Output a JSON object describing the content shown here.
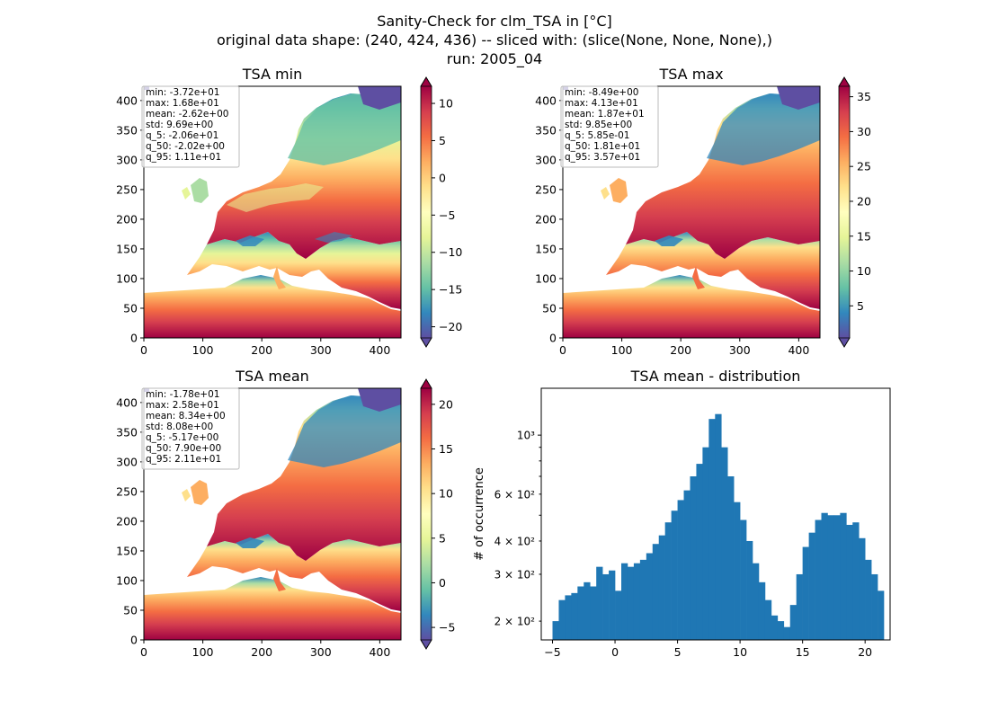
{
  "figure": {
    "title_lines": [
      "Sanity-Check for clm_TSA in [°C]",
      "original data shape: (240, 424, 436) -- sliced with: (slice(None, None, None),)",
      "run: 2005_04"
    ]
  },
  "colors": {
    "spectral_r": [
      "#5e4fa2",
      "#3288bd",
      "#66c2a5",
      "#abdda4",
      "#e6f598",
      "#ffffbf",
      "#fee08b",
      "#fdae61",
      "#f46d43",
      "#d53e4f",
      "#9e0142"
    ],
    "hist_bar": "#1f77b4",
    "axes": "#000000"
  },
  "maps": [
    {
      "title": "TSA min",
      "x_ticks": [
        "0",
        "100",
        "200",
        "300",
        "400"
      ],
      "y_ticks": [
        "0",
        "50",
        "100",
        "150",
        "200",
        "250",
        "300",
        "350",
        "400"
      ],
      "stats": [
        "min: -3.72e+01",
        "max: 1.68e+01",
        "mean: -2.62e+00",
        "std: 9.69e+00",
        "q_5: -2.06e+01",
        "q_50: -2.02e+00",
        "q_95: 1.11e+01"
      ],
      "colorbar": {
        "vmin": -21.5,
        "vmax": 12.3,
        "ticks": [
          10,
          5,
          0,
          -5,
          -10,
          -15,
          -20
        ],
        "tick_labels": [
          "10",
          "5",
          "0",
          "−5",
          "−10",
          "−15",
          "−20"
        ]
      }
    },
    {
      "title": "TSA max",
      "x_ticks": [
        "0",
        "100",
        "200",
        "300",
        "400"
      ],
      "y_ticks": [
        "0",
        "50",
        "100",
        "150",
        "200",
        "250",
        "300",
        "350",
        "400"
      ],
      "stats": [
        "min: -8.49e+00",
        "max: 4.13e+01",
        "mean: 1.87e+01",
        "std: 9.85e+00",
        "q_5: 5.85e-01",
        "q_50: 1.81e+01",
        "q_95: 3.57e+01"
      ],
      "colorbar": {
        "vmin": 0.4,
        "vmax": 36.5,
        "ticks": [
          35,
          30,
          25,
          20,
          15,
          10,
          5
        ],
        "tick_labels": [
          "35",
          "30",
          "25",
          "20",
          "15",
          "10",
          "5"
        ]
      }
    },
    {
      "title": "TSA mean",
      "x_ticks": [
        "0",
        "100",
        "200",
        "300",
        "400"
      ],
      "y_ticks": [
        "0",
        "50",
        "100",
        "150",
        "200",
        "250",
        "300",
        "350",
        "400"
      ],
      "stats": [
        "min: -1.78e+01",
        "max: 2.58e+01",
        "mean: 8.34e+00",
        "std: 8.08e+00",
        "q_5: -5.17e+00",
        "q_50: 7.90e+00",
        "q_95: 2.11e+01"
      ],
      "colorbar": {
        "vmin": -6.4,
        "vmax": 21.8,
        "ticks": [
          20,
          15,
          10,
          5,
          0,
          -5
        ],
        "tick_labels": [
          "20",
          "15",
          "10",
          "5",
          "0",
          "−5"
        ]
      }
    }
  ],
  "histogram": {
    "title": "TSA mean - distribution",
    "ylabel": "# of occurrence",
    "x_ticks": [
      "−5",
      "0",
      "5",
      "10",
      "15",
      "20"
    ],
    "y_ticks": [
      "2 × 10²",
      "3 × 10²",
      "4 × 10²",
      "6 × 10²",
      "10³"
    ]
  },
  "chart_data": {
    "type": "bar",
    "title": "TSA mean - distribution",
    "xlabel": "",
    "ylabel": "# of occurrence",
    "y_scale": "log",
    "xlim": [
      -5.9,
      22.0
    ],
    "ylim": [
      170,
      1500
    ],
    "x": [
      -5.0,
      -4.5,
      -4.0,
      -3.5,
      -3.0,
      -2.5,
      -2.0,
      -1.5,
      -1.0,
      -0.5,
      0.0,
      0.5,
      1.0,
      1.5,
      2.0,
      2.5,
      3.0,
      3.5,
      4.0,
      4.5,
      5.0,
      5.5,
      6.0,
      6.5,
      7.0,
      7.5,
      8.0,
      8.5,
      9.0,
      9.5,
      10.0,
      10.5,
      11.0,
      11.5,
      12.0,
      12.5,
      13.0,
      13.5,
      14.0,
      14.5,
      15.0,
      15.5,
      16.0,
      16.5,
      17.0,
      17.5,
      18.0,
      18.5,
      19.0,
      19.5,
      20.0,
      20.5,
      21.0
    ],
    "values": [
      200,
      240,
      250,
      255,
      270,
      280,
      270,
      320,
      300,
      310,
      260,
      330,
      320,
      330,
      340,
      360,
      390,
      420,
      470,
      520,
      570,
      620,
      700,
      780,
      900,
      1150,
      1200,
      900,
      700,
      560,
      480,
      400,
      330,
      280,
      240,
      210,
      200,
      190,
      230,
      300,
      380,
      430,
      480,
      510,
      500,
      500,
      510,
      460,
      470,
      410,
      340,
      300,
      260
    ]
  }
}
